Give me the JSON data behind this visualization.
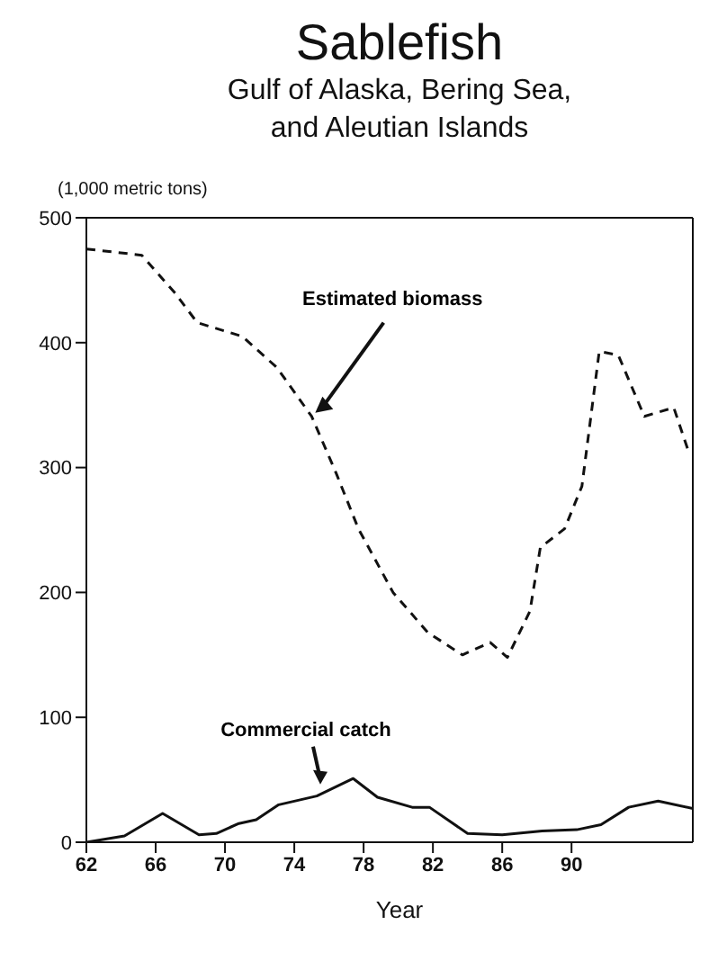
{
  "chart_data": {
    "type": "line",
    "title": "Sablefish",
    "subtitle": "Gulf of Alaska, Bering Sea,\nand Aleutian Islands",
    "ylabel": "(1,000 metric tons)",
    "xlabel": "Year",
    "xlim": [
      62,
      97
    ],
    "xticks": [
      62,
      66,
      70,
      74,
      78,
      82,
      86,
      90
    ],
    "ylim": [
      0,
      500
    ],
    "yticks": [
      0,
      100,
      200,
      300,
      400,
      500
    ],
    "marker": "none",
    "series": [
      {
        "color": "#111111",
        "line_style": "dashed",
        "x": [
          62,
          65.2,
          67.1,
          68.4,
          71,
          73,
          75,
          76.4,
          77.7,
          79.7,
          81.7,
          83.7,
          85.3,
          86.3,
          87.6,
          88.2,
          89.6,
          90.6,
          91.6,
          92.7,
          94.2,
          95.9,
          96.7
        ],
        "values": [
          475,
          470,
          440,
          416,
          405,
          380,
          341,
          296,
          251,
          200,
          168,
          150,
          160,
          148,
          185,
          236,
          251,
          285,
          393,
          390,
          341,
          348,
          315
        ]
      },
      {
        "color": "#111111",
        "line_style": "solid",
        "x": [
          62,
          64.2,
          66.4,
          68.5,
          69.5,
          70.8,
          71.8,
          73.1,
          75.3,
          77.4,
          78.8,
          80.8,
          81.8,
          84,
          86,
          88.3,
          90.3,
          91.7,
          93.3,
          95,
          97
        ],
        "values": [
          0,
          5,
          23,
          6,
          7,
          15,
          18,
          30,
          37,
          51,
          36,
          28,
          28,
          7,
          6,
          9,
          10,
          14,
          28,
          33,
          27
        ]
      }
    ],
    "annotations": [
      {
        "text": "Estimated biomass",
        "x": 75,
        "y": 341
      },
      {
        "text": "Commercial catch",
        "x": 75.5,
        "y": 42
      }
    ]
  }
}
